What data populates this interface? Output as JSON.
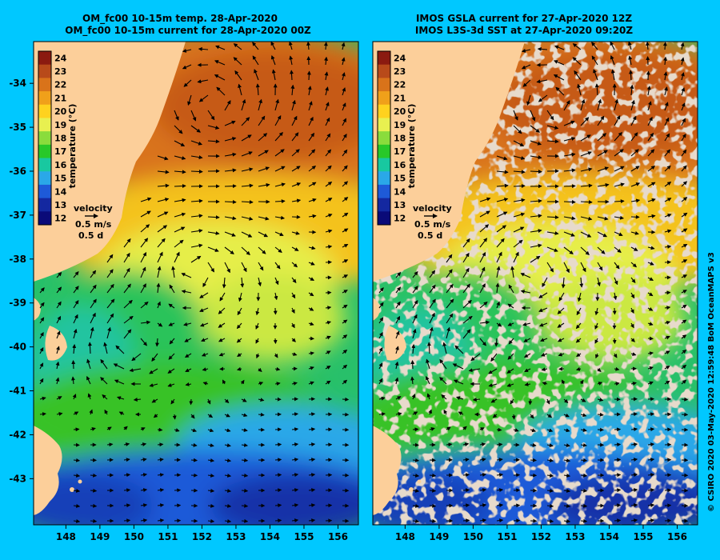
{
  "background_color": "#00c8ff",
  "land_color": "#fccf9a",
  "cloud_color": "#cbb299",
  "panels": [
    {
      "id": "model",
      "title_line1": "OM_fc00 10-15m temp. 28-Apr-2020",
      "title_line2": "OM_fc00 10-15m current for 28-Apr-2020 00Z",
      "has_cloud_mask": false
    },
    {
      "id": "observed",
      "title_line1": "IMOS GSLA current for 27-Apr-2020 12Z",
      "title_line2": "IMOS L3S-3d SST at 27-Apr-2020 09:20Z",
      "has_cloud_mask": true
    }
  ],
  "axes": {
    "x_ticks": [
      "148",
      "149",
      "150",
      "151",
      "152",
      "153",
      "154",
      "155",
      "156"
    ],
    "y_ticks": [
      "-34",
      "-35",
      "-36",
      "-37",
      "-38",
      "-39",
      "-40",
      "-41",
      "-42",
      "-43"
    ],
    "lon_range": [
      147.05,
      156.6
    ],
    "lat_range": [
      -44.05,
      -33.05
    ]
  },
  "colorbar": {
    "label": "temperature (°C)",
    "ticks": [
      "24",
      "23",
      "22",
      "21",
      "20",
      "19",
      "18",
      "17",
      "16",
      "15",
      "14",
      "13",
      "12"
    ],
    "colors": [
      "#8b1a10",
      "#b84a1a",
      "#d9731a",
      "#f0a01a",
      "#ffd21e",
      "#e8f050",
      "#8adc3c",
      "#28c828",
      "#18c8a0",
      "#2aa8e8",
      "#1e5ad8",
      "#1428a0",
      "#0a0a78"
    ]
  },
  "velocity_key": {
    "label": "velocity",
    "speed": "0.5 m/s",
    "duration": "0.5 d"
  },
  "footer": "© CSIRO 2020  03-May-2020 12:59:48 BoM OceanMAPS v3"
}
